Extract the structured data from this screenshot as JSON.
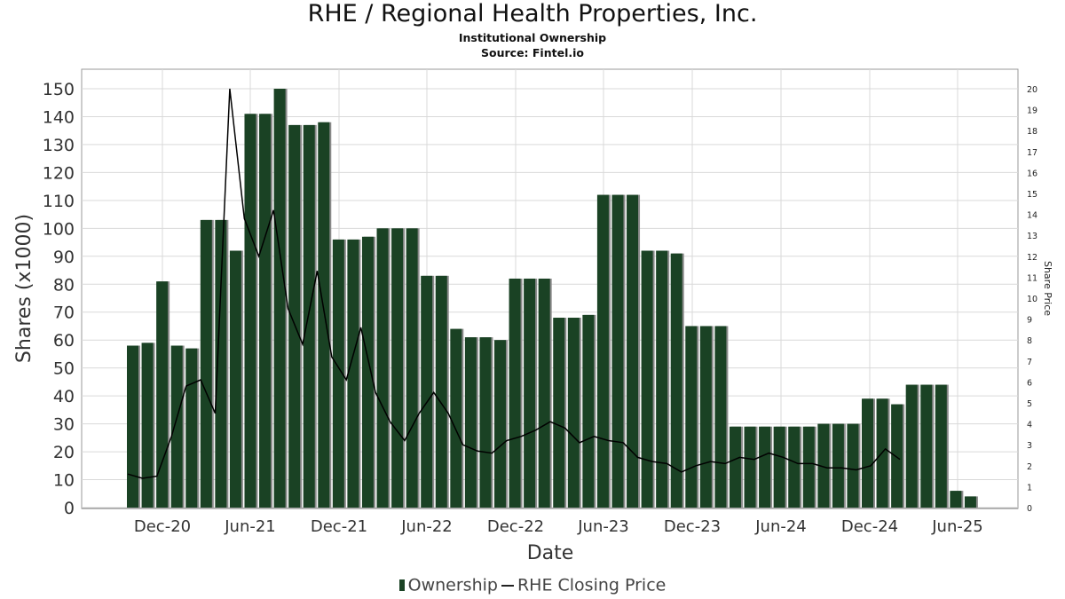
{
  "header": {
    "title": "RHE / Regional Health Properties, Inc.",
    "subtitle": "Institutional Ownership",
    "source": "Source: Fintel.io"
  },
  "legend": {
    "ownership": "Ownership",
    "price": "RHE Closing Price"
  },
  "colors": {
    "bar": "#1a4224",
    "bar_shadow": "#8a8a8a",
    "line": "#000000",
    "grid": "#d9d9d9"
  },
  "chart_data": {
    "type": "bar",
    "xlabel": "Date",
    "ylabel": "Shares (x1000)",
    "y2label": "Share Price",
    "ylim": [
      0,
      150
    ],
    "y2lim": [
      0,
      20
    ],
    "yticks": [
      0,
      10,
      20,
      30,
      40,
      50,
      60,
      70,
      80,
      90,
      100,
      110,
      120,
      130,
      140,
      150
    ],
    "y2ticks": [
      0,
      1,
      2,
      3,
      4,
      5,
      6,
      7,
      8,
      9,
      10,
      11,
      12,
      13,
      14,
      15,
      16,
      17,
      18,
      19,
      20
    ],
    "xticks": [
      "Dec-20",
      "Jun-21",
      "Dec-21",
      "Jun-22",
      "Dec-22",
      "Jun-23",
      "Dec-23",
      "Jun-24",
      "Dec-24",
      "Jun-25"
    ],
    "grid": true,
    "legend_position": "bottom",
    "series": [
      {
        "name": "Ownership",
        "type": "bar",
        "values": [
          58,
          59,
          81,
          58,
          57,
          103,
          103,
          92,
          141,
          141,
          150,
          137,
          137,
          138,
          96,
          96,
          97,
          100,
          100,
          100,
          83,
          83,
          64,
          61,
          61,
          60,
          82,
          82,
          82,
          68,
          68,
          69,
          112,
          112,
          112,
          92,
          92,
          91,
          65,
          65,
          65,
          29,
          29,
          29,
          29,
          29,
          29,
          30,
          30,
          30,
          39,
          39,
          37,
          44,
          44,
          44,
          6,
          4
        ]
      },
      {
        "name": "RHE Closing Price",
        "type": "line",
        "values": [
          1.6,
          1.4,
          1.5,
          3.4,
          5.8,
          6.1,
          4.5,
          20.0,
          13.8,
          12.0,
          14.2,
          9.5,
          7.8,
          11.3,
          7.2,
          6.1,
          8.6,
          5.5,
          4.1,
          3.2,
          4.5,
          5.5,
          4.5,
          3.0,
          2.7,
          2.6,
          3.2,
          3.4,
          3.7,
          4.1,
          3.8,
          3.1,
          3.4,
          3.2,
          3.1,
          2.4,
          2.2,
          2.1,
          1.7,
          2.0,
          2.2,
          2.1,
          2.4,
          2.3,
          2.6,
          2.4,
          2.1,
          2.1,
          1.9,
          1.9,
          1.8,
          2.0,
          2.8,
          2.3
        ]
      }
    ]
  }
}
